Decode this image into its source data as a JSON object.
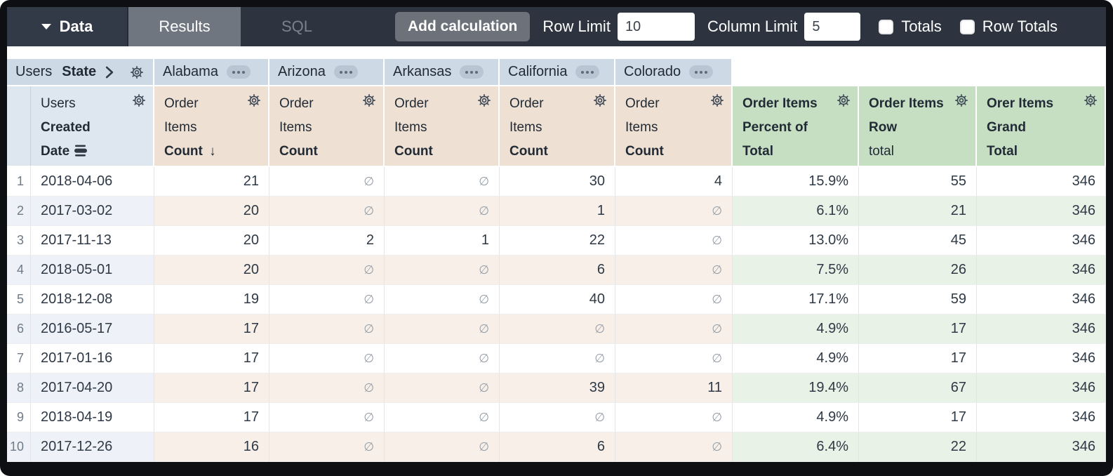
{
  "toolbar": {
    "data_label": "Data",
    "results_tab": "Results",
    "sql_tab": "SQL",
    "add_calculation_label": "Add calculation",
    "row_limit_label": "Row Limit",
    "row_limit_value": "10",
    "column_limit_label": "Column Limit",
    "column_limit_value": "5",
    "totals_label": "Totals",
    "row_totals_label": "Row Totals"
  },
  "pivot_header": {
    "dimension": {
      "view": "Users",
      "field": "State"
    },
    "states": [
      "Alabama",
      "Arizona",
      "Arkansas",
      "California",
      "Colorado"
    ]
  },
  "measure_headers": {
    "date": {
      "lines": [
        "Users",
        "Created",
        "Date"
      ]
    },
    "state_measure": {
      "lines": [
        "Order",
        "Items",
        "Count"
      ]
    },
    "sorted_state_index": 0,
    "sort_arrow": "↓",
    "calcs": [
      {
        "lines": [
          "Order Items",
          "Percent of",
          "Total"
        ],
        "bold": [
          true,
          true,
          true
        ]
      },
      {
        "lines": [
          "Order Items",
          "Row",
          "total"
        ],
        "bold": [
          true,
          true,
          false
        ]
      },
      {
        "lines": [
          "Orer Items",
          "Grand",
          "Total"
        ],
        "bold": [
          true,
          true,
          true
        ]
      }
    ]
  },
  "null_symbol": "∅",
  "rows": [
    {
      "num": "1",
      "date": "2018-04-06",
      "values": [
        "21",
        "∅",
        "∅",
        "30",
        "4"
      ],
      "calcs": [
        "15.9%",
        "55",
        "346"
      ]
    },
    {
      "num": "2",
      "date": "2017-03-02",
      "values": [
        "20",
        "∅",
        "∅",
        "1",
        "∅"
      ],
      "calcs": [
        "6.1%",
        "21",
        "346"
      ]
    },
    {
      "num": "3",
      "date": "2017-11-13",
      "values": [
        "20",
        "2",
        "1",
        "22",
        "∅"
      ],
      "calcs": [
        "13.0%",
        "45",
        "346"
      ]
    },
    {
      "num": "4",
      "date": "2018-05-01",
      "values": [
        "20",
        "∅",
        "∅",
        "6",
        "∅"
      ],
      "calcs": [
        "7.5%",
        "26",
        "346"
      ]
    },
    {
      "num": "5",
      "date": "2018-12-08",
      "values": [
        "19",
        "∅",
        "∅",
        "40",
        "∅"
      ],
      "calcs": [
        "17.1%",
        "59",
        "346"
      ]
    },
    {
      "num": "6",
      "date": "2016-05-17",
      "values": [
        "17",
        "∅",
        "∅",
        "∅",
        "∅"
      ],
      "calcs": [
        "4.9%",
        "17",
        "346"
      ]
    },
    {
      "num": "7",
      "date": "2017-01-16",
      "values": [
        "17",
        "∅",
        "∅",
        "∅",
        "∅"
      ],
      "calcs": [
        "4.9%",
        "17",
        "346"
      ]
    },
    {
      "num": "8",
      "date": "2017-04-20",
      "values": [
        "17",
        "∅",
        "∅",
        "39",
        "11"
      ],
      "calcs": [
        "19.4%",
        "67",
        "346"
      ]
    },
    {
      "num": "9",
      "date": "2018-04-19",
      "values": [
        "17",
        "∅",
        "∅",
        "∅",
        "∅"
      ],
      "calcs": [
        "4.9%",
        "17",
        "346"
      ]
    },
    {
      "num": "10",
      "date": "2017-12-26",
      "values": [
        "16",
        "∅",
        "∅",
        "6",
        "∅"
      ],
      "calcs": [
        "6.4%",
        "22",
        "346"
      ]
    }
  ],
  "colors": {
    "toolbar_bg": "#2d3440",
    "active_tab_bg": "#70767f",
    "pivot_header_bg": "#cdd9e4",
    "dimension_header_bg": "#dee6ef",
    "measure_header_bg": "#eee0d3",
    "calc_header_bg": "#c6dfc3",
    "stripe_dimension": "#eef2f8",
    "stripe_measure": "#f8efe9",
    "stripe_calc": "#e8f2e7"
  }
}
